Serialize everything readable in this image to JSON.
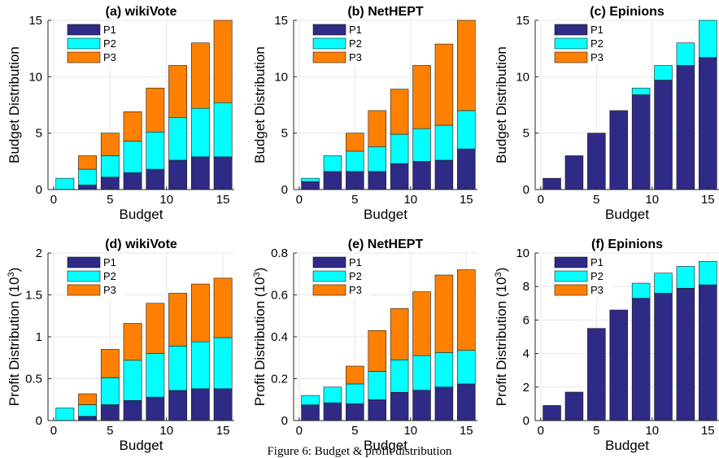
{
  "figure": {
    "caption": "Figure 6: Budget & profit distribution",
    "colors": {
      "P1": "#2e2a86",
      "P2": "#00ffff",
      "P3": "#ff8000"
    }
  },
  "chart_data": [
    {
      "type": "bar",
      "stacked": true,
      "title": "(a) wikiVote",
      "xlabel": "Budget",
      "ylabel": "Budget Distribution",
      "x": [
        1,
        3,
        5,
        7,
        9,
        11,
        13,
        15
      ],
      "xlim": [
        -0.5,
        16
      ],
      "ylim": [
        0,
        15
      ],
      "xticks": [
        0,
        5,
        10,
        15
      ],
      "yticks": [
        0,
        5,
        10,
        15
      ],
      "legend": "top-left",
      "series": [
        {
          "name": "P1",
          "values": [
            0,
            0.4,
            1.1,
            1.5,
            1.8,
            2.6,
            2.9,
            2.9
          ]
        },
        {
          "name": "P2",
          "values": [
            1.0,
            1.4,
            1.9,
            2.8,
            3.3,
            3.8,
            4.3,
            4.8
          ]
        },
        {
          "name": "P3",
          "values": [
            0,
            1.2,
            2.0,
            2.6,
            3.9,
            4.6,
            5.8,
            7.3
          ]
        }
      ]
    },
    {
      "type": "bar",
      "stacked": true,
      "title": "(b) NetHEPT",
      "xlabel": "Budget",
      "ylabel": "Budget Distribution",
      "x": [
        1,
        3,
        5,
        7,
        9,
        11,
        13,
        15
      ],
      "xlim": [
        -0.5,
        16
      ],
      "ylim": [
        0,
        15
      ],
      "xticks": [
        0,
        5,
        10,
        15
      ],
      "yticks": [
        0,
        5,
        10,
        15
      ],
      "legend": "top-left",
      "series": [
        {
          "name": "P1",
          "values": [
            0.7,
            1.6,
            1.6,
            1.6,
            2.3,
            2.5,
            2.6,
            3.6
          ]
        },
        {
          "name": "P2",
          "values": [
            0.3,
            1.4,
            1.8,
            2.2,
            2.6,
            2.9,
            3.1,
            3.4
          ]
        },
        {
          "name": "P3",
          "values": [
            0,
            0,
            1.6,
            3.2,
            4.0,
            5.6,
            7.2,
            8.0
          ]
        }
      ]
    },
    {
      "type": "bar",
      "stacked": true,
      "title": "(c) Epinions",
      "xlabel": "Budget",
      "ylabel": "Budget Distribution",
      "x": [
        1,
        3,
        5,
        7,
        9,
        11,
        13,
        15
      ],
      "xlim": [
        -0.5,
        16
      ],
      "ylim": [
        0,
        15
      ],
      "xticks": [
        0,
        5,
        10,
        15
      ],
      "yticks": [
        0,
        5,
        10,
        15
      ],
      "legend": "top-left",
      "series": [
        {
          "name": "P1",
          "values": [
            1.0,
            3.0,
            5.0,
            7.0,
            8.4,
            9.7,
            11.0,
            11.7
          ]
        },
        {
          "name": "P2",
          "values": [
            0,
            0,
            0,
            0,
            0.6,
            1.3,
            2.0,
            3.3
          ]
        },
        {
          "name": "P3",
          "values": [
            0,
            0,
            0,
            0,
            0,
            0,
            0,
            0
          ]
        }
      ]
    },
    {
      "type": "bar",
      "stacked": true,
      "title": "(d) wikiVote",
      "xlabel": "Budget",
      "ylabel": "Profit Distribution (10^3)",
      "x": [
        1,
        3,
        5,
        7,
        9,
        11,
        13,
        15
      ],
      "xlim": [
        -0.5,
        16
      ],
      "ylim": [
        0,
        2
      ],
      "xticks": [
        0,
        5,
        10,
        15
      ],
      "yticks": [
        0,
        0.5,
        1,
        1.5,
        2
      ],
      "legend": "top-left",
      "series": [
        {
          "name": "P1",
          "values": [
            0,
            0.05,
            0.19,
            0.24,
            0.28,
            0.36,
            0.38,
            0.38
          ]
        },
        {
          "name": "P2",
          "values": [
            0.15,
            0.14,
            0.32,
            0.48,
            0.52,
            0.53,
            0.56,
            0.61
          ]
        },
        {
          "name": "P3",
          "values": [
            0,
            0.13,
            0.34,
            0.44,
            0.6,
            0.63,
            0.69,
            0.71
          ]
        }
      ]
    },
    {
      "type": "bar",
      "stacked": true,
      "title": "(e) NetHEPT",
      "xlabel": "Budget",
      "ylabel": "Profit Distribution (10^3)",
      "x": [
        1,
        3,
        5,
        7,
        9,
        11,
        13,
        15
      ],
      "xlim": [
        -0.5,
        16
      ],
      "ylim": [
        0,
        0.8
      ],
      "xticks": [
        0,
        5,
        10,
        15
      ],
      "yticks": [
        0,
        0.2,
        0.4,
        0.6,
        0.8
      ],
      "legend": "top-left",
      "series": [
        {
          "name": "P1",
          "values": [
            0.075,
            0.085,
            0.08,
            0.1,
            0.135,
            0.145,
            0.16,
            0.175
          ]
        },
        {
          "name": "P2",
          "values": [
            0.045,
            0.075,
            0.095,
            0.135,
            0.155,
            0.165,
            0.165,
            0.16
          ]
        },
        {
          "name": "P3",
          "values": [
            0,
            0,
            0.085,
            0.195,
            0.245,
            0.305,
            0.37,
            0.385
          ]
        }
      ]
    },
    {
      "type": "bar",
      "stacked": true,
      "title": "(f) Epinions",
      "xlabel": "Budget",
      "ylabel": "Profit Distribution (10^3)",
      "x": [
        1,
        3,
        5,
        7,
        9,
        11,
        13,
        15
      ],
      "xlim": [
        -0.5,
        16
      ],
      "ylim": [
        0,
        10
      ],
      "xticks": [
        0,
        5,
        10,
        15
      ],
      "yticks": [
        0,
        2,
        4,
        6,
        8,
        10
      ],
      "legend": "top-left",
      "series": [
        {
          "name": "P1",
          "values": [
            0.9,
            1.7,
            5.5,
            6.6,
            7.3,
            7.6,
            7.9,
            8.1
          ]
        },
        {
          "name": "P2",
          "values": [
            0,
            0,
            0,
            0,
            0.9,
            1.2,
            1.3,
            1.4
          ]
        },
        {
          "name": "P3",
          "values": [
            0,
            0,
            0,
            0,
            0,
            0,
            0,
            0
          ]
        }
      ]
    }
  ]
}
